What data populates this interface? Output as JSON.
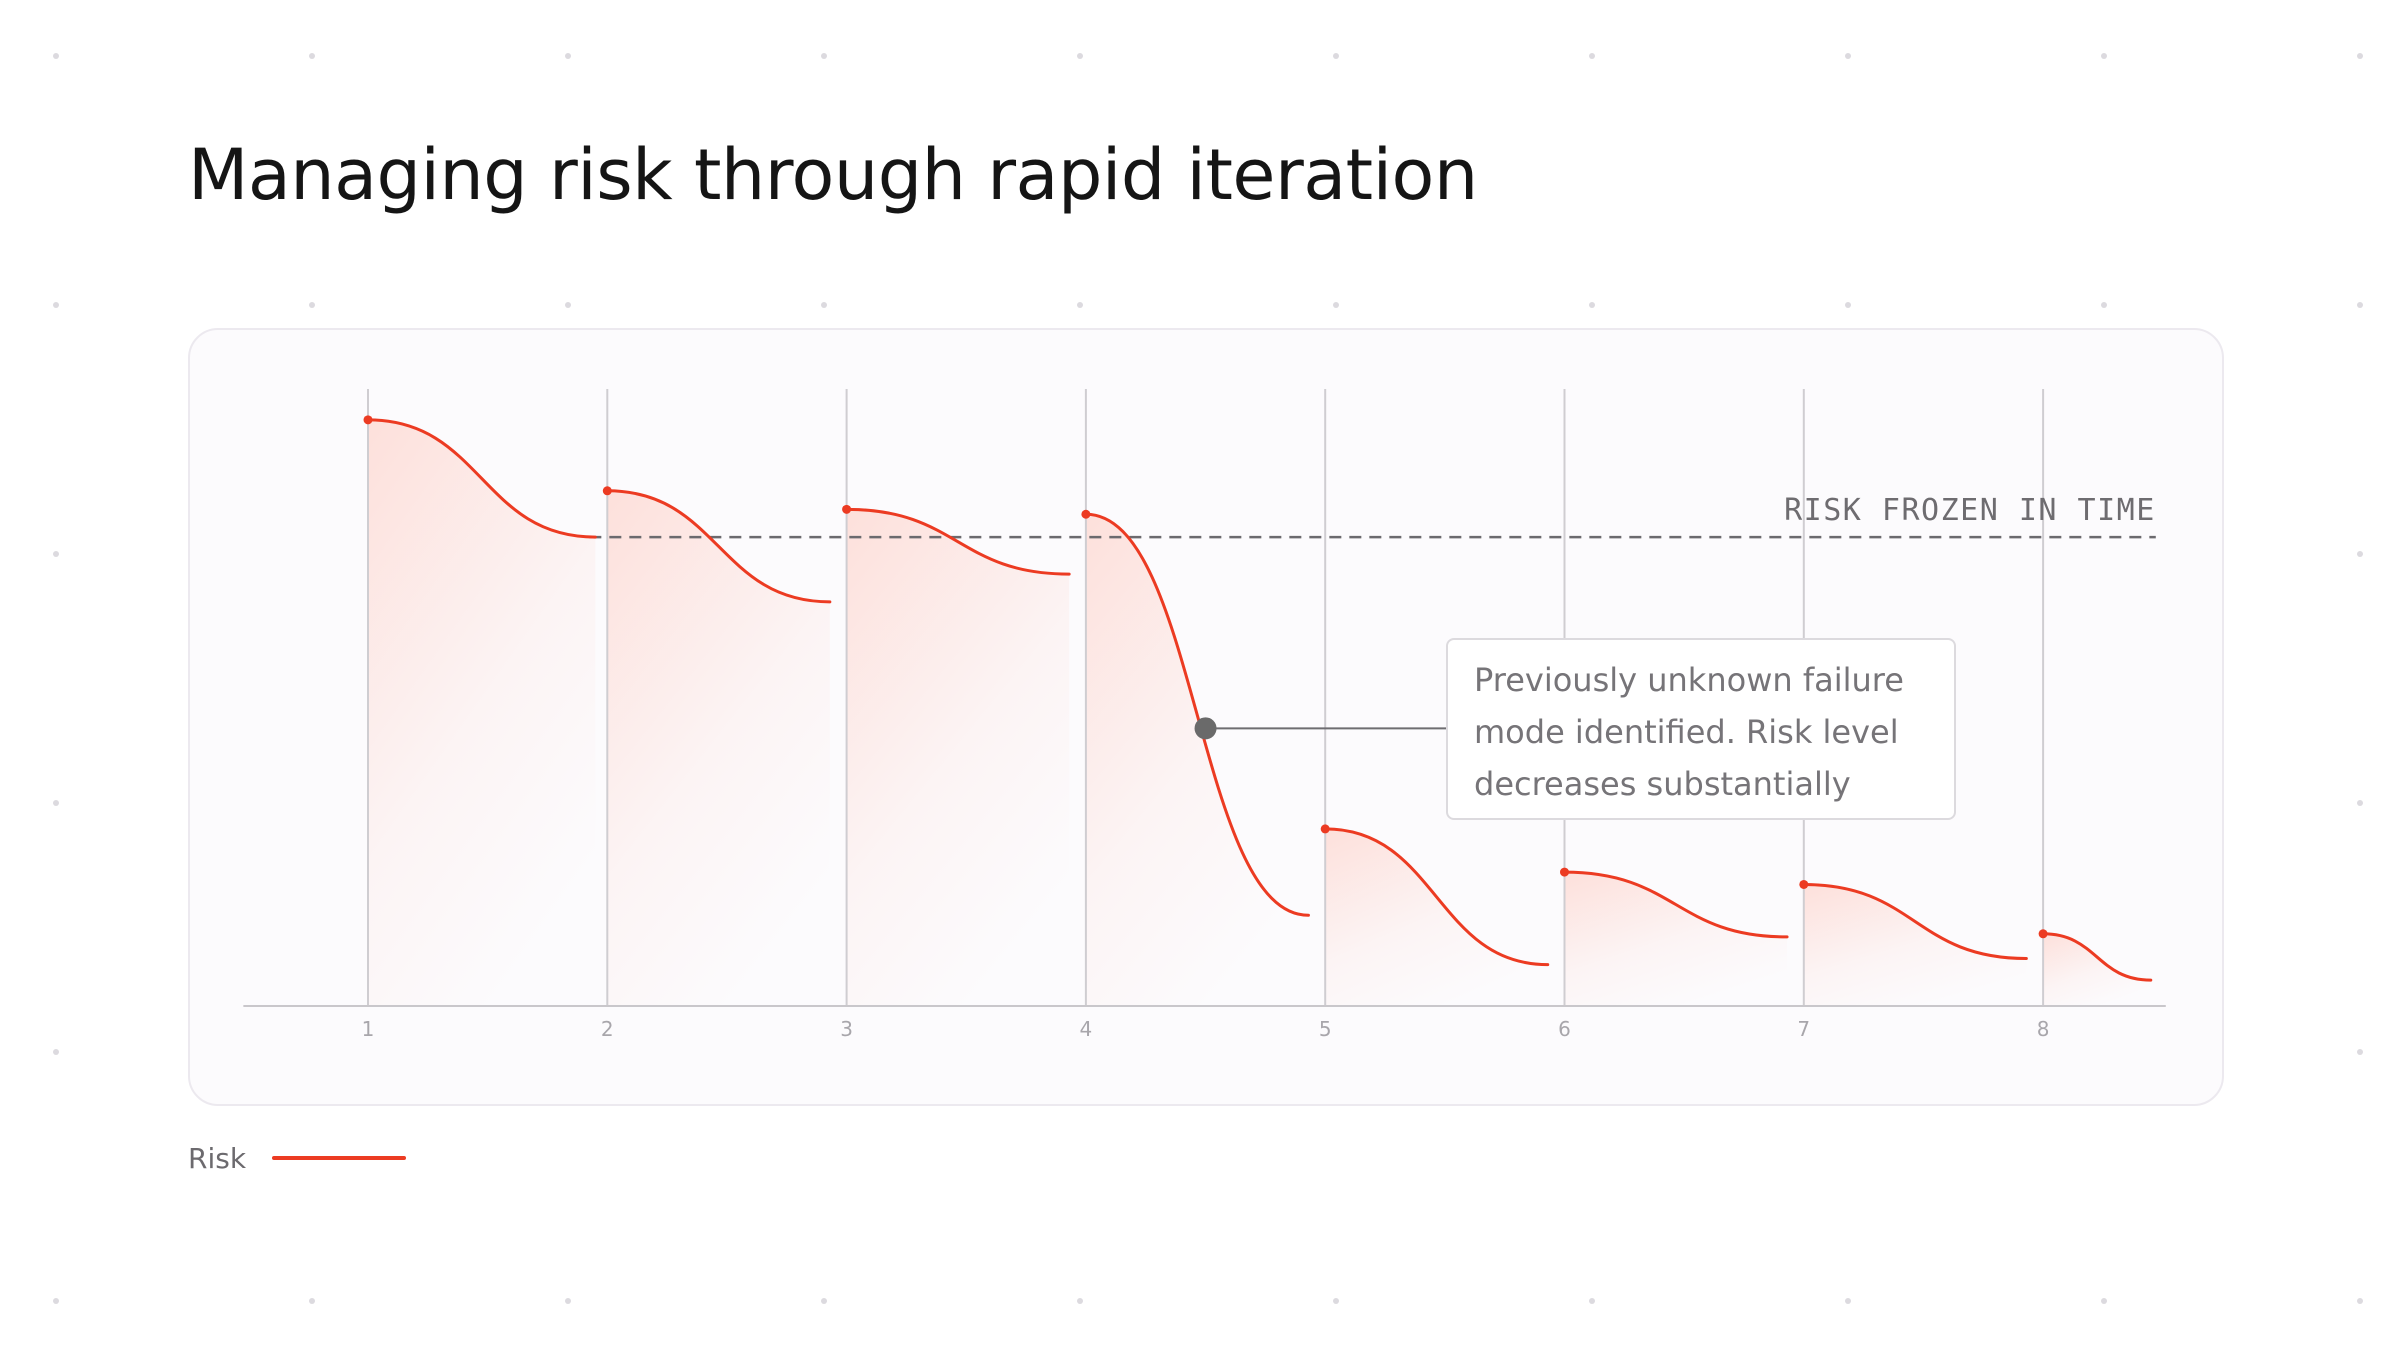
{
  "title": "Managing risk through rapid iteration",
  "colors": {
    "risk": "#ec3b22",
    "fill": "#fde0db",
    "reference": "#6b6a6e",
    "marker": "#6a6a6a",
    "gridline": "#cfcdd1"
  },
  "chart_data": {
    "type": "line",
    "title": "",
    "xlabel": "",
    "ylabel": "",
    "x_ticks": [
      "1",
      "2",
      "3",
      "4",
      "5",
      "6",
      "7",
      "8"
    ],
    "xlim": [
      0.5,
      8.45
    ],
    "ylim": [
      0,
      1
    ],
    "grid": "vertical",
    "legend_position": "bottom-left",
    "series": [
      {
        "name": "Risk",
        "segments": [
          {
            "x_start": 1,
            "x_end": 1.95,
            "y_start": 0.95,
            "y_end": 0.76
          },
          {
            "x_start": 2,
            "x_end": 2.93,
            "y_start": 0.835,
            "y_end": 0.655
          },
          {
            "x_start": 3,
            "x_end": 3.93,
            "y_start": 0.805,
            "y_end": 0.7
          },
          {
            "x_start": 4,
            "x_end": 4.93,
            "y_start": 0.797,
            "y_end": 0.147
          },
          {
            "x_start": 5,
            "x_end": 5.93,
            "y_start": 0.287,
            "y_end": 0.067
          },
          {
            "x_start": 6,
            "x_end": 6.93,
            "y_start": 0.217,
            "y_end": 0.112
          },
          {
            "x_start": 7,
            "x_end": 7.93,
            "y_start": 0.197,
            "y_end": 0.077
          },
          {
            "x_start": 8,
            "x_end": 8.45,
            "y_start": 0.117,
            "y_end": 0.042
          }
        ]
      }
    ],
    "reference_line": {
      "label": "RISK FROZEN IN TIME",
      "y": 0.76,
      "x_start": 1.95,
      "x_end": 8.45
    },
    "annotations": [
      {
        "text": "Previously unknown failure mode identified. Risk level decreases substantially",
        "x": 4.5,
        "y": 0.45
      }
    ]
  },
  "legend": {
    "items": [
      {
        "label": "Risk"
      }
    ]
  }
}
